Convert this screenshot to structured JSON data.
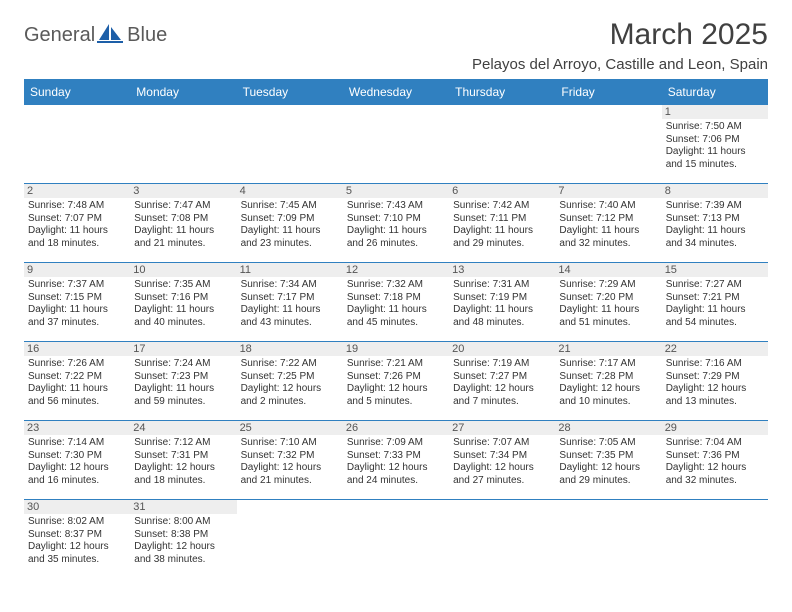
{
  "brand": {
    "part1": "General",
    "part2": "Blue"
  },
  "title": "March 2025",
  "location": "Pelayos del Arroyo, Castille and Leon, Spain",
  "colors": {
    "header_bg": "#3080c0",
    "header_text": "#ffffff",
    "daynum_bg": "#eeeeee",
    "border": "#3080c0",
    "text": "#333333",
    "title_color": "#404040",
    "logo_gray": "#5a5a5a",
    "logo_blue": "#1d5fa8"
  },
  "day_headers": [
    "Sunday",
    "Monday",
    "Tuesday",
    "Wednesday",
    "Thursday",
    "Friday",
    "Saturday"
  ],
  "weeks": [
    [
      {
        "n": "",
        "sunrise": "",
        "sunset": "",
        "daylight": ""
      },
      {
        "n": "",
        "sunrise": "",
        "sunset": "",
        "daylight": ""
      },
      {
        "n": "",
        "sunrise": "",
        "sunset": "",
        "daylight": ""
      },
      {
        "n": "",
        "sunrise": "",
        "sunset": "",
        "daylight": ""
      },
      {
        "n": "",
        "sunrise": "",
        "sunset": "",
        "daylight": ""
      },
      {
        "n": "",
        "sunrise": "",
        "sunset": "",
        "daylight": ""
      },
      {
        "n": "1",
        "sunrise": "Sunrise: 7:50 AM",
        "sunset": "Sunset: 7:06 PM",
        "daylight": "Daylight: 11 hours and 15 minutes."
      }
    ],
    [
      {
        "n": "2",
        "sunrise": "Sunrise: 7:48 AM",
        "sunset": "Sunset: 7:07 PM",
        "daylight": "Daylight: 11 hours and 18 minutes."
      },
      {
        "n": "3",
        "sunrise": "Sunrise: 7:47 AM",
        "sunset": "Sunset: 7:08 PM",
        "daylight": "Daylight: 11 hours and 21 minutes."
      },
      {
        "n": "4",
        "sunrise": "Sunrise: 7:45 AM",
        "sunset": "Sunset: 7:09 PM",
        "daylight": "Daylight: 11 hours and 23 minutes."
      },
      {
        "n": "5",
        "sunrise": "Sunrise: 7:43 AM",
        "sunset": "Sunset: 7:10 PM",
        "daylight": "Daylight: 11 hours and 26 minutes."
      },
      {
        "n": "6",
        "sunrise": "Sunrise: 7:42 AM",
        "sunset": "Sunset: 7:11 PM",
        "daylight": "Daylight: 11 hours and 29 minutes."
      },
      {
        "n": "7",
        "sunrise": "Sunrise: 7:40 AM",
        "sunset": "Sunset: 7:12 PM",
        "daylight": "Daylight: 11 hours and 32 minutes."
      },
      {
        "n": "8",
        "sunrise": "Sunrise: 7:39 AM",
        "sunset": "Sunset: 7:13 PM",
        "daylight": "Daylight: 11 hours and 34 minutes."
      }
    ],
    [
      {
        "n": "9",
        "sunrise": "Sunrise: 7:37 AM",
        "sunset": "Sunset: 7:15 PM",
        "daylight": "Daylight: 11 hours and 37 minutes."
      },
      {
        "n": "10",
        "sunrise": "Sunrise: 7:35 AM",
        "sunset": "Sunset: 7:16 PM",
        "daylight": "Daylight: 11 hours and 40 minutes."
      },
      {
        "n": "11",
        "sunrise": "Sunrise: 7:34 AM",
        "sunset": "Sunset: 7:17 PM",
        "daylight": "Daylight: 11 hours and 43 minutes."
      },
      {
        "n": "12",
        "sunrise": "Sunrise: 7:32 AM",
        "sunset": "Sunset: 7:18 PM",
        "daylight": "Daylight: 11 hours and 45 minutes."
      },
      {
        "n": "13",
        "sunrise": "Sunrise: 7:31 AM",
        "sunset": "Sunset: 7:19 PM",
        "daylight": "Daylight: 11 hours and 48 minutes."
      },
      {
        "n": "14",
        "sunrise": "Sunrise: 7:29 AM",
        "sunset": "Sunset: 7:20 PM",
        "daylight": "Daylight: 11 hours and 51 minutes."
      },
      {
        "n": "15",
        "sunrise": "Sunrise: 7:27 AM",
        "sunset": "Sunset: 7:21 PM",
        "daylight": "Daylight: 11 hours and 54 minutes."
      }
    ],
    [
      {
        "n": "16",
        "sunrise": "Sunrise: 7:26 AM",
        "sunset": "Sunset: 7:22 PM",
        "daylight": "Daylight: 11 hours and 56 minutes."
      },
      {
        "n": "17",
        "sunrise": "Sunrise: 7:24 AM",
        "sunset": "Sunset: 7:23 PM",
        "daylight": "Daylight: 11 hours and 59 minutes."
      },
      {
        "n": "18",
        "sunrise": "Sunrise: 7:22 AM",
        "sunset": "Sunset: 7:25 PM",
        "daylight": "Daylight: 12 hours and 2 minutes."
      },
      {
        "n": "19",
        "sunrise": "Sunrise: 7:21 AM",
        "sunset": "Sunset: 7:26 PM",
        "daylight": "Daylight: 12 hours and 5 minutes."
      },
      {
        "n": "20",
        "sunrise": "Sunrise: 7:19 AM",
        "sunset": "Sunset: 7:27 PM",
        "daylight": "Daylight: 12 hours and 7 minutes."
      },
      {
        "n": "21",
        "sunrise": "Sunrise: 7:17 AM",
        "sunset": "Sunset: 7:28 PM",
        "daylight": "Daylight: 12 hours and 10 minutes."
      },
      {
        "n": "22",
        "sunrise": "Sunrise: 7:16 AM",
        "sunset": "Sunset: 7:29 PM",
        "daylight": "Daylight: 12 hours and 13 minutes."
      }
    ],
    [
      {
        "n": "23",
        "sunrise": "Sunrise: 7:14 AM",
        "sunset": "Sunset: 7:30 PM",
        "daylight": "Daylight: 12 hours and 16 minutes."
      },
      {
        "n": "24",
        "sunrise": "Sunrise: 7:12 AM",
        "sunset": "Sunset: 7:31 PM",
        "daylight": "Daylight: 12 hours and 18 minutes."
      },
      {
        "n": "25",
        "sunrise": "Sunrise: 7:10 AM",
        "sunset": "Sunset: 7:32 PM",
        "daylight": "Daylight: 12 hours and 21 minutes."
      },
      {
        "n": "26",
        "sunrise": "Sunrise: 7:09 AM",
        "sunset": "Sunset: 7:33 PM",
        "daylight": "Daylight: 12 hours and 24 minutes."
      },
      {
        "n": "27",
        "sunrise": "Sunrise: 7:07 AM",
        "sunset": "Sunset: 7:34 PM",
        "daylight": "Daylight: 12 hours and 27 minutes."
      },
      {
        "n": "28",
        "sunrise": "Sunrise: 7:05 AM",
        "sunset": "Sunset: 7:35 PM",
        "daylight": "Daylight: 12 hours and 29 minutes."
      },
      {
        "n": "29",
        "sunrise": "Sunrise: 7:04 AM",
        "sunset": "Sunset: 7:36 PM",
        "daylight": "Daylight: 12 hours and 32 minutes."
      }
    ],
    [
      {
        "n": "30",
        "sunrise": "Sunrise: 8:02 AM",
        "sunset": "Sunset: 8:37 PM",
        "daylight": "Daylight: 12 hours and 35 minutes."
      },
      {
        "n": "31",
        "sunrise": "Sunrise: 8:00 AM",
        "sunset": "Sunset: 8:38 PM",
        "daylight": "Daylight: 12 hours and 38 minutes."
      },
      {
        "n": "",
        "sunrise": "",
        "sunset": "",
        "daylight": ""
      },
      {
        "n": "",
        "sunrise": "",
        "sunset": "",
        "daylight": ""
      },
      {
        "n": "",
        "sunrise": "",
        "sunset": "",
        "daylight": ""
      },
      {
        "n": "",
        "sunrise": "",
        "sunset": "",
        "daylight": ""
      },
      {
        "n": "",
        "sunrise": "",
        "sunset": "",
        "daylight": ""
      }
    ]
  ]
}
